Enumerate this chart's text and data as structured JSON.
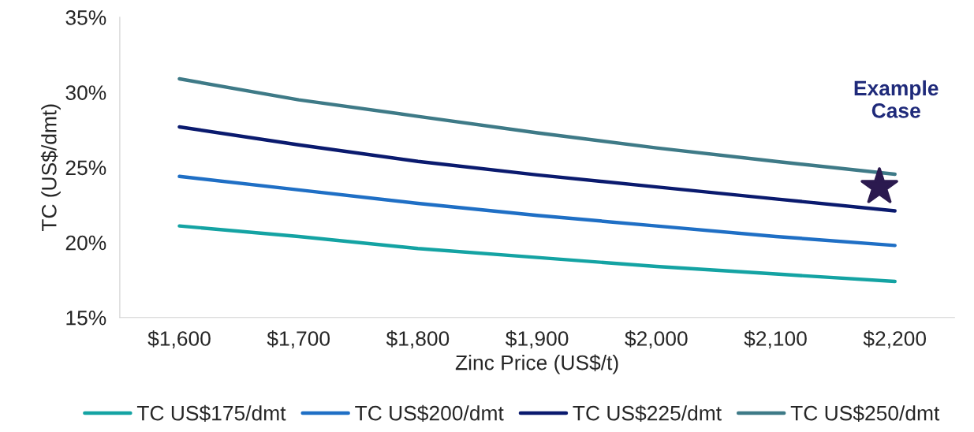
{
  "chart_data": {
    "type": "line",
    "xlabel": "Zinc Price (US$/t)",
    "ylabel": "TC (US$/dmt)",
    "x": [
      1600,
      1700,
      1800,
      1900,
      2000,
      2100,
      2200
    ],
    "xlim": [
      1550,
      2250
    ],
    "xticks": [
      {
        "value": 1600,
        "label": "$1,600"
      },
      {
        "value": 1700,
        "label": "$1,700"
      },
      {
        "value": 1800,
        "label": "$1,800"
      },
      {
        "value": 1900,
        "label": "$1,900"
      },
      {
        "value": 2000,
        "label": "$2,000"
      },
      {
        "value": 2100,
        "label": "$2,100"
      },
      {
        "value": 2200,
        "label": "$2,200"
      }
    ],
    "ylim": [
      15,
      35
    ],
    "yticks": [
      {
        "value": 15,
        "label": "15%"
      },
      {
        "value": 20,
        "label": "20%"
      },
      {
        "value": 25,
        "label": "25%"
      },
      {
        "value": 30,
        "label": "30%"
      },
      {
        "value": 35,
        "label": "35%"
      }
    ],
    "series": [
      {
        "name": "TC US$175/dmt",
        "color": "#14a3a3",
        "values": [
          21.1,
          20.4,
          19.6,
          19.0,
          18.4,
          17.9,
          17.4
        ]
      },
      {
        "name": "TC US$200/dmt",
        "color": "#1f6fc5",
        "values": [
          24.4,
          23.5,
          22.6,
          21.8,
          21.1,
          20.4,
          19.8
        ]
      },
      {
        "name": "TC US$225/dmt",
        "color": "#0a1a6e",
        "values": [
          27.7,
          26.5,
          25.4,
          24.5,
          23.7,
          22.9,
          22.1
        ]
      },
      {
        "name": "TC US$250/dmt",
        "color": "#3e7a87",
        "values": [
          30.9,
          29.5,
          28.4,
          27.3,
          26.3,
          25.4,
          24.55
        ]
      },
      {
        "type": "scatter",
        "marker": "star",
        "color": "#2b1a4f",
        "x": [
          2187
        ],
        "values": [
          23.7
        ]
      }
    ],
    "annotations": [
      "Example\nCase"
    ],
    "grid": false,
    "legend": "bottom",
    "marker": "none",
    "line_style": "solid"
  }
}
